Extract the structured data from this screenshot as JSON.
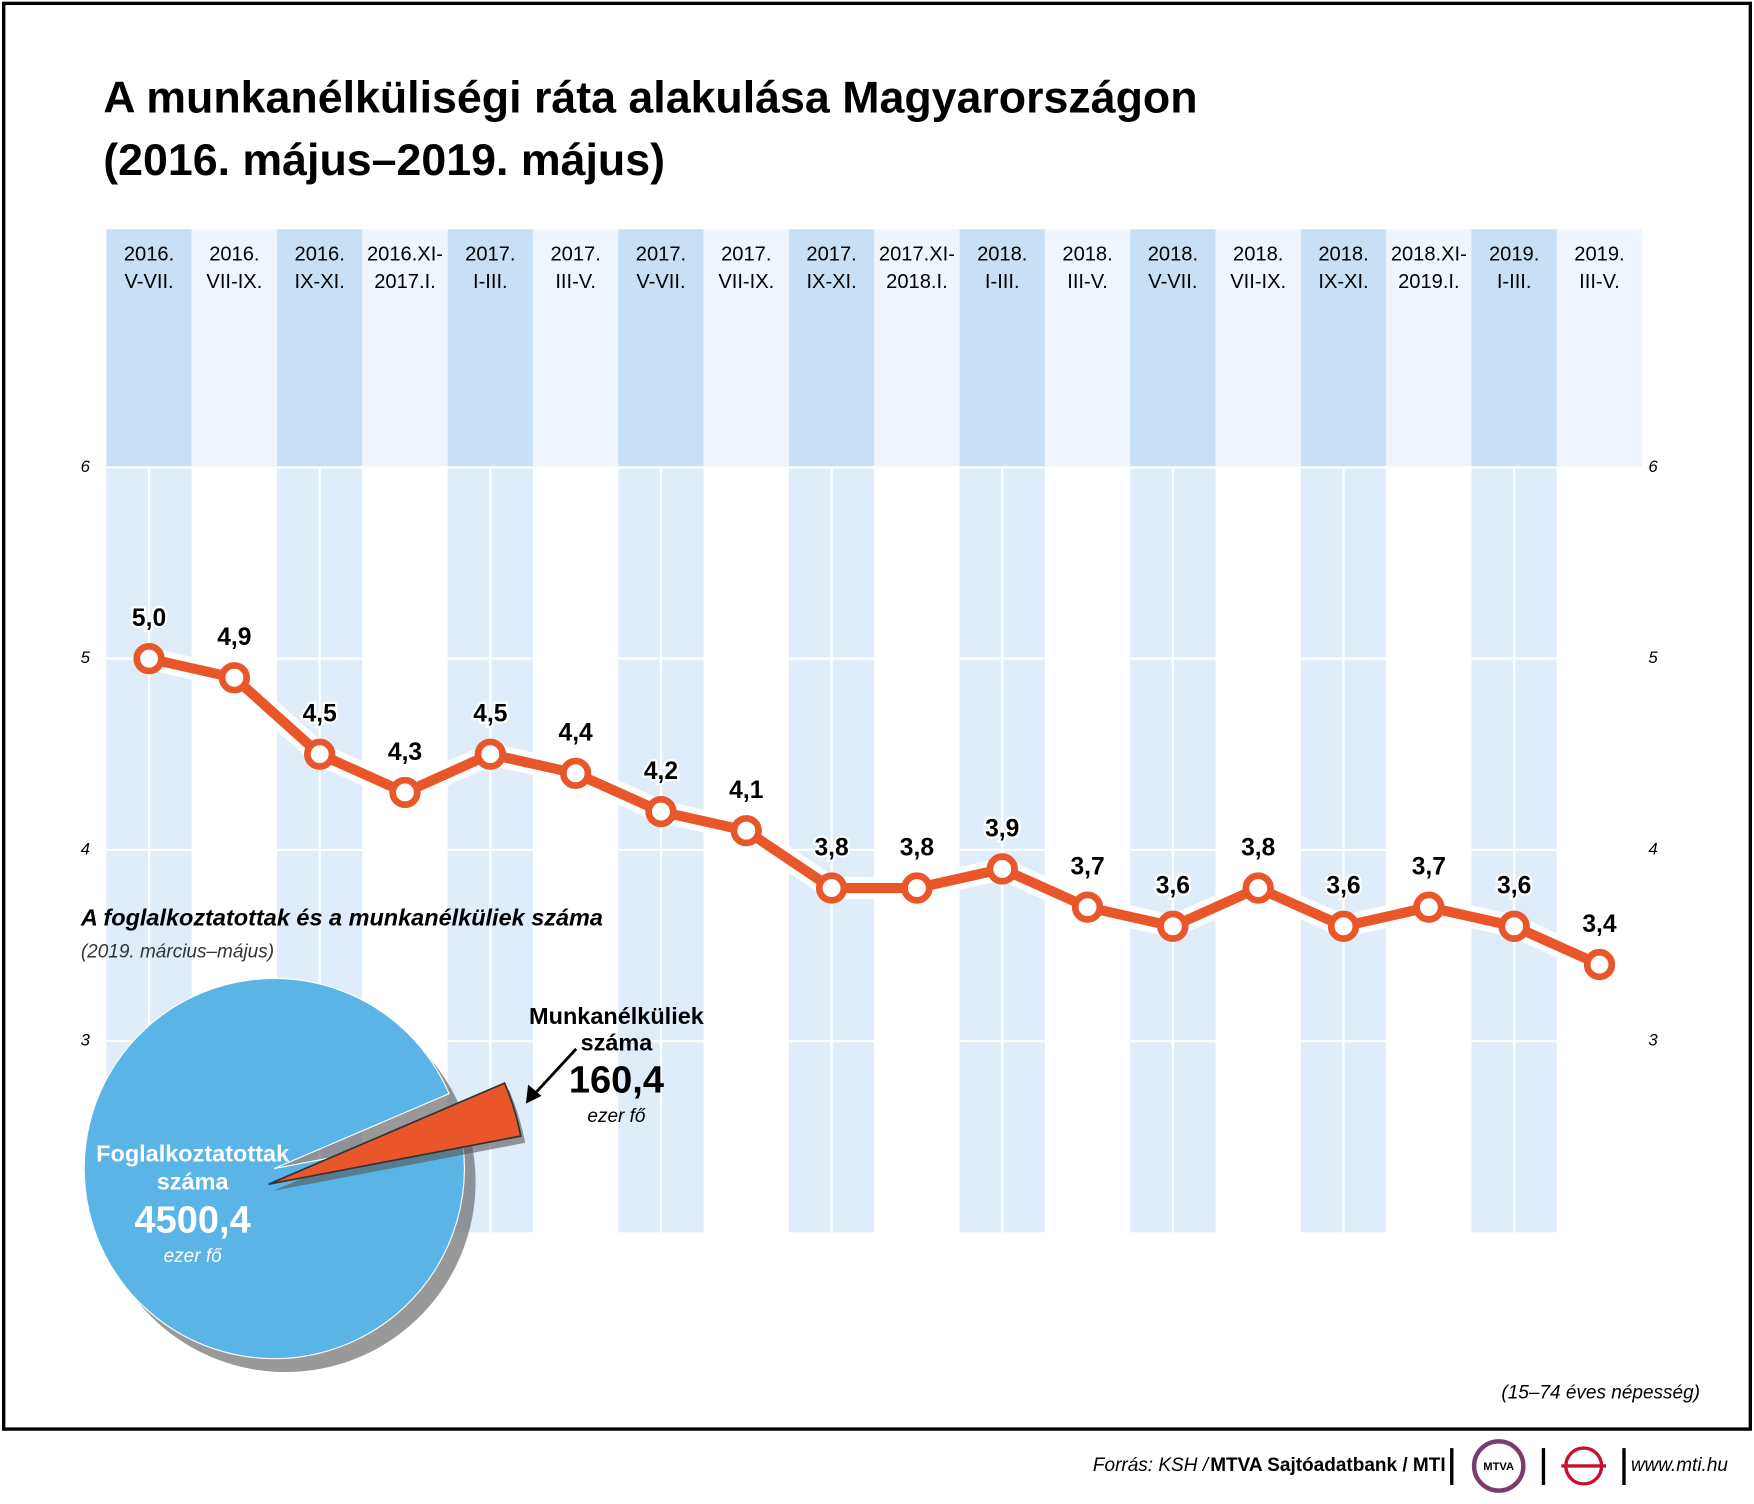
{
  "chart_data": [
    {
      "type": "line",
      "title": "A munkanélküliségi ráta alakulása Magyarországon",
      "subtitle": "(2016. május–2019. május)",
      "categories": [
        [
          "2016.",
          "V-VII."
        ],
        [
          "2016.",
          "VII-IX."
        ],
        [
          "2016.",
          "IX-XI."
        ],
        [
          "2016.XI-",
          "2017.I."
        ],
        [
          "2017.",
          "I-III."
        ],
        [
          "2017.",
          "III-V."
        ],
        [
          "2017.",
          "V-VII."
        ],
        [
          "2017.",
          "VII-IX."
        ],
        [
          "2017.",
          "IX-XI."
        ],
        [
          "2017.XI-",
          "2018.I."
        ],
        [
          "2018.",
          "I-III."
        ],
        [
          "2018.",
          "III-V."
        ],
        [
          "2018.",
          "V-VII."
        ],
        [
          "2018.",
          "VII-IX."
        ],
        [
          "2018.",
          "IX-XI."
        ],
        [
          "2018.XI-",
          "2019.I."
        ],
        [
          "2019.",
          "I-III."
        ],
        [
          "2019.",
          "III-V."
        ]
      ],
      "values": [
        5.0,
        4.9,
        4.5,
        4.3,
        4.5,
        4.4,
        4.2,
        4.1,
        3.8,
        3.8,
        3.9,
        3.7,
        3.6,
        3.8,
        3.6,
        3.7,
        3.6,
        3.4
      ],
      "value_labels": [
        "5,0",
        "4,9",
        "4,5",
        "4,3",
        "4,5",
        "4,4",
        "4,2",
        "4,1",
        "3,8",
        "3,8",
        "3,9",
        "3,7",
        "3,6",
        "3,8",
        "3,6",
        "3,7",
        "3,6",
        "3,4"
      ],
      "color": "#e8562a",
      "ylim": [
        2,
        6
      ],
      "yticks": [
        3,
        4,
        5,
        6
      ],
      "note": "(15–74 éves népesség)"
    },
    {
      "type": "pie",
      "title": "A foglalkoztatottak és a munkanélküliek száma",
      "subtitle": "(2019. március–május)",
      "labels": [
        [
          "Foglalkoztatottak",
          "száma"
        ],
        [
          "Munkanélküliek",
          "száma"
        ]
      ],
      "values": [
        4500.4,
        160.4
      ],
      "value_labels": [
        "4500,4",
        "160,4"
      ],
      "unit": "ezer fő",
      "colors": [
        "#5ab4e5",
        "#e8562a"
      ]
    }
  ],
  "footer": {
    "source_prefix": "Forrás: KSH / ",
    "source_main": "MTVA Sajtóadatbank / MTI",
    "logo": "MTVA",
    "website": "www.mti.hu"
  }
}
